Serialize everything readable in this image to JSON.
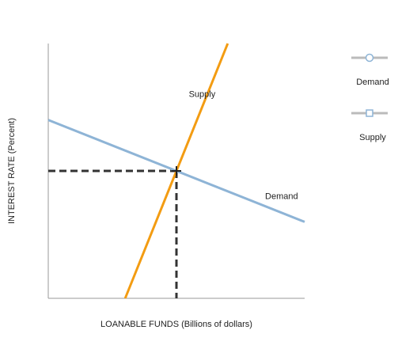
{
  "chart_data": {
    "type": "line",
    "xlabel": "LOANABLE FUNDS (Billions of dollars)",
    "ylabel": "INTEREST RATE (Percent)",
    "xlim": [
      0,
      10
    ],
    "ylim": [
      0,
      10
    ],
    "grid": false,
    "legend_position": "right",
    "series": [
      {
        "name": "Demand",
        "color": "#8eb4d6",
        "marker": "circle",
        "points": [
          [
            0,
            7.0
          ],
          [
            10,
            3.0
          ]
        ],
        "label_at": [
          9.1,
          3.9
        ]
      },
      {
        "name": "Supply",
        "color": "#f39c12",
        "marker": "square",
        "points": [
          [
            3.0,
            0
          ],
          [
            7.0,
            10.0
          ]
        ],
        "label_at": [
          6.0,
          7.9
        ]
      }
    ],
    "equilibrium": {
      "x": 5.0,
      "y": 5.0,
      "color": "#333333",
      "style": "dashed"
    },
    "legend": [
      {
        "name": "Demand",
        "color": "#8eb4d6",
        "marker": "circle",
        "line_color": "#bbbbbb"
      },
      {
        "name": "Supply",
        "color": "#8eb4d6",
        "marker": "square",
        "line_color": "#bbbbbb"
      }
    ]
  }
}
